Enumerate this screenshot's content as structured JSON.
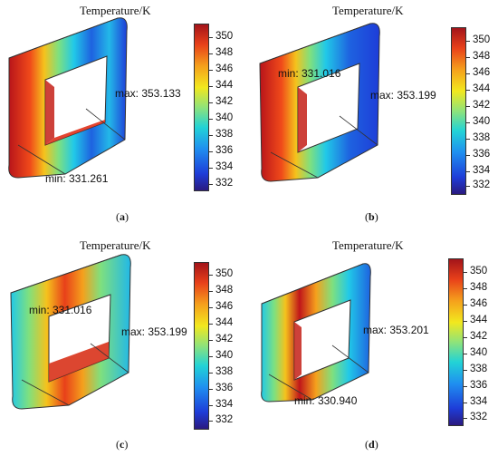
{
  "panels": [
    {
      "id": "a",
      "title": "Temperature/K",
      "max_label": "max: 353.133",
      "min_label": "min: 331.261",
      "caption": "a",
      "ticks": [
        "350",
        "348",
        "346",
        "344",
        "342",
        "340",
        "338",
        "336",
        "334",
        "332"
      ]
    },
    {
      "id": "b",
      "title": "Temperature/K",
      "max_label": "max: 353.199",
      "min_label": "min: 331.016",
      "caption": "b",
      "ticks": [
        "350",
        "348",
        "346",
        "344",
        "342",
        "340",
        "338",
        "336",
        "334",
        "332"
      ]
    },
    {
      "id": "c",
      "title": "Temperature/K",
      "max_label": "max: 353.199",
      "min_label": "min: 331.016",
      "caption": "c",
      "ticks": [
        "350",
        "348",
        "346",
        "344",
        "342",
        "340",
        "338",
        "336",
        "334",
        "332"
      ]
    },
    {
      "id": "d",
      "title": "Temperature/K",
      "max_label": "max: 353.201",
      "min_label": "min: 330.940",
      "caption": "d",
      "ticks": [
        "350",
        "348",
        "346",
        "344",
        "342",
        "340",
        "338",
        "336",
        "334",
        "332"
      ]
    }
  ],
  "colors": {
    "hot": "#c0161a",
    "warm": "#f5c21c",
    "mid": "#7fe07e",
    "cool": "#21c9e8",
    "cold": "#1e3cd8"
  }
}
